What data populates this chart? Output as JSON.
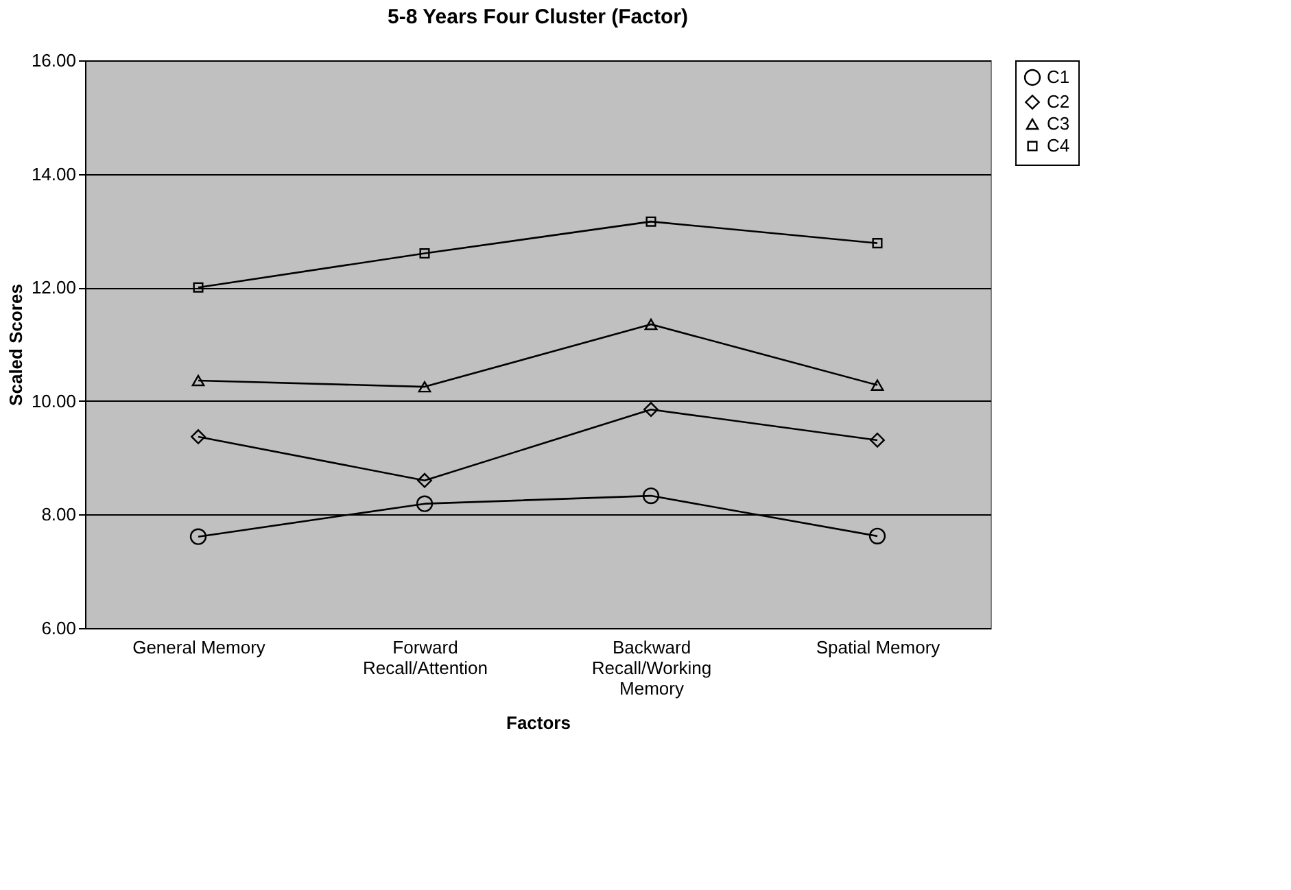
{
  "chart_data": {
    "type": "line",
    "title": "5-8 Years Four Cluster (Factor)",
    "xlabel": "Factors",
    "ylabel": "Scaled Scores",
    "categories": [
      "General Memory",
      "Forward Recall/Attention",
      "Backward Recall/Working Memory",
      "Spatial Memory"
    ],
    "series": [
      {
        "name": "C1",
        "color": "#000000",
        "marker": "circle",
        "values": [
          7.61,
          8.19,
          8.33,
          7.62
        ]
      },
      {
        "name": "C2",
        "color": "#000000",
        "marker": "diamond",
        "values": [
          9.37,
          8.6,
          9.85,
          9.31
        ]
      },
      {
        "name": "C3",
        "color": "#000000",
        "marker": "triangle",
        "values": [
          10.36,
          10.25,
          11.35,
          10.28
        ]
      },
      {
        "name": "C4",
        "color": "#000000",
        "marker": "square",
        "values": [
          12.0,
          12.6,
          13.16,
          12.78
        ]
      }
    ],
    "ylim": [
      6,
      16
    ],
    "yticks": [
      {
        "value": 6,
        "label": "6.00"
      },
      {
        "value": 8,
        "label": "8.00"
      },
      {
        "value": 10,
        "label": "10.00"
      },
      {
        "value": 12,
        "label": "12.00"
      },
      {
        "value": 14,
        "label": "14.00"
      },
      {
        "value": 16,
        "label": "16.00"
      }
    ],
    "grid": "y",
    "legend": "right",
    "line_style": "solid"
  }
}
